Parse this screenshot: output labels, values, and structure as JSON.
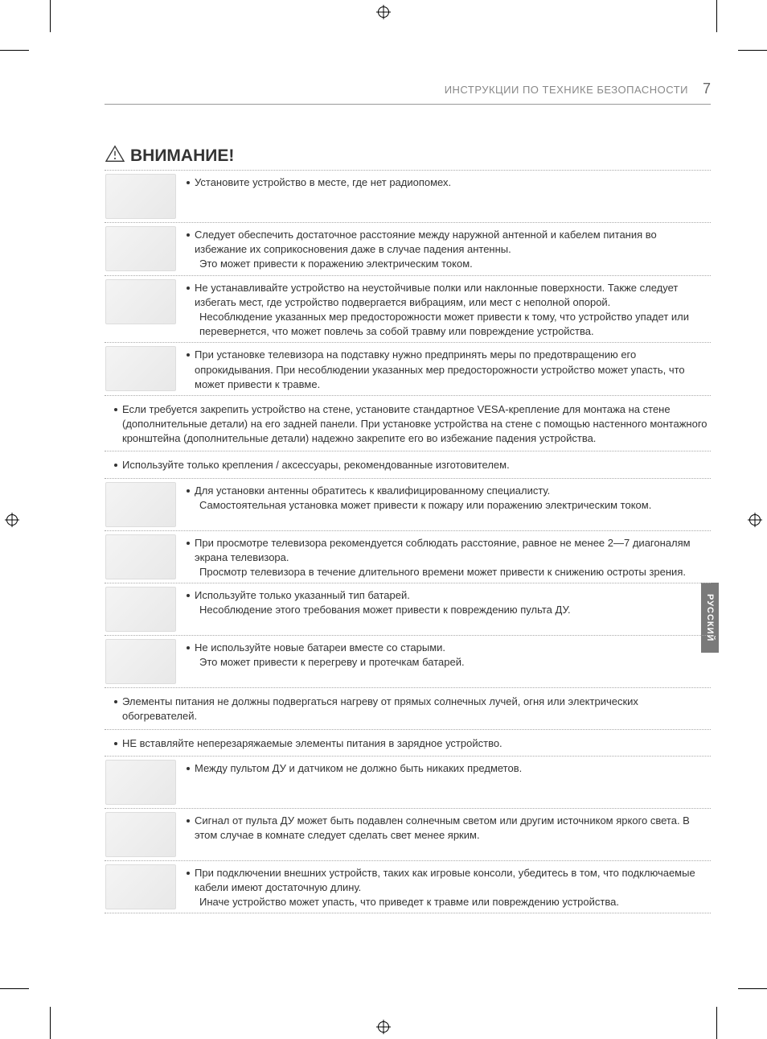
{
  "header": {
    "title": "ИНСТРУКЦИИ ПО ТЕХНИКЕ БЕЗОПАСНОСТИ",
    "page_number": "7"
  },
  "section": {
    "title": "ВНИМАНИЕ!"
  },
  "language_tab": "РУССКИЙ",
  "items": [
    {
      "has_image": true,
      "main": "Установите устройство в месте, где нет радиопомех."
    },
    {
      "has_image": true,
      "main": "Следует обеспечить достаточное расстояние между наружной антенной и кабелем питания во избежание их соприкосновения даже в случае падения антенны.",
      "sub": "Это может привести к поражению электрическим током."
    },
    {
      "has_image": true,
      "main": "Не устанавливайте устройство на неустойчивые полки или наклонные поверхности. Также следует избегать мест, где устройство подвергается вибрациям, или мест с неполной опорой.",
      "sub": "Несоблюдение указанных мер предосторожности может привести к тому, что устройство упадет или перевернется, что может повлечь за собой травму или повреждение устройства."
    },
    {
      "has_image": true,
      "main": "При установке телевизора на подставку нужно предпринять меры по предотвращению его опрокидывания. При несоблюдении указанных мер предосторожности устройство может упасть, что может привести к травме."
    },
    {
      "has_image": false,
      "main": "Если требуется закрепить устройство на стене, установите стандартное VESA-крепление для монтажа на стене (дополнительные детали) на его задней панели. При установке устройства на стене с помощью настенного монтажного кронштейна (дополнительные детали) надежно закрепите его во избежание падения устройства."
    },
    {
      "has_image": false,
      "main": "Используйте только крепления / аксессуары, рекомендованные изготовителем."
    },
    {
      "has_image": true,
      "main": "Для установки антенны обратитесь к квалифицированному специалисту.",
      "sub": "Самостоятельная установка может привести к пожару или поражению электрическим током."
    },
    {
      "has_image": true,
      "main": "При просмотре телевизора рекомендуется соблюдать расстояние, равное не менее 2—7 диагоналям экрана телевизора.",
      "sub": "Просмотр телевизора в течение длительного времени может привести к снижению остроты зрения."
    },
    {
      "has_image": true,
      "main": "Используйте только указанный тип батарей.",
      "sub": "Несоблюдение этого требования может привести к повреждению пульта ДУ."
    },
    {
      "has_image": true,
      "main": "Не используйте новые батареи вместе со старыми.",
      "sub": "Это может привести к перегреву и протечкам батарей."
    },
    {
      "has_image": false,
      "main": "Элементы питания не должны подвергаться нагреву от прямых солнечных лучей, огня или электрических обогревателей."
    },
    {
      "has_image": false,
      "main": "НЕ вставляйте неперезаряжаемые элементы питания в зарядное устройство."
    },
    {
      "has_image": true,
      "main": "Между пультом ДУ и датчиком не должно быть никаких предметов."
    },
    {
      "has_image": true,
      "main": "Сигнал от пульта ДУ может быть подавлен солнечным светом или другим источником яркого света. В этом случае в комнате следует сделать свет менее ярким."
    },
    {
      "has_image": true,
      "main": "При подключении внешних устройств, таких как игровые консоли, убедитесь в том, что подключаемые кабели имеют достаточную длину.",
      "sub": "Иначе устройство может упасть, что приведет к травме или повреждению устройства."
    }
  ],
  "colors": {
    "text": "#333333",
    "header_text": "#888888",
    "border_dotted": "#aaaaaa",
    "lang_tab_bg": "#7a7a7a",
    "lang_tab_text": "#ffffff"
  }
}
